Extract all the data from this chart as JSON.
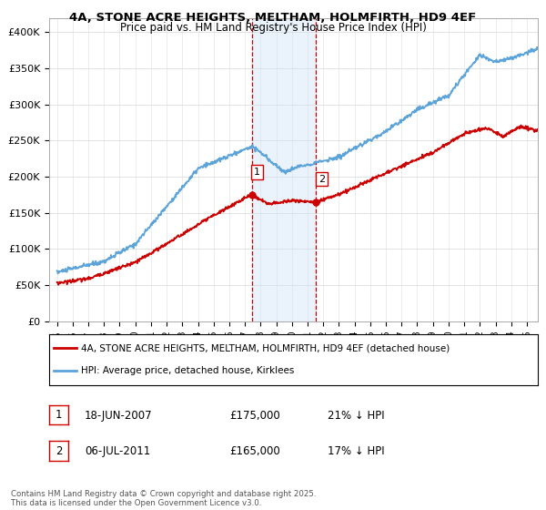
{
  "title": "4A, STONE ACRE HEIGHTS, MELTHAM, HOLMFIRTH, HD9 4EF",
  "subtitle": "Price paid vs. HM Land Registry's House Price Index (HPI)",
  "ylabel_ticks": [
    "£0",
    "£50K",
    "£100K",
    "£150K",
    "£200K",
    "£250K",
    "£300K",
    "£350K",
    "£400K"
  ],
  "ytick_values": [
    0,
    50000,
    100000,
    150000,
    200000,
    250000,
    300000,
    350000,
    400000
  ],
  "ylim": [
    0,
    420000
  ],
  "xlim_start": 1994.5,
  "xlim_end": 2025.7,
  "hpi_color": "#5ba3d9",
  "price_color": "#cc0000",
  "marker1_date": 2007.46,
  "marker2_date": 2011.51,
  "marker1_price": 175000,
  "marker2_price": 165000,
  "marker1_label": "1",
  "marker2_label": "2",
  "marker1_hpi_pct": "21% ↓ HPI",
  "marker2_hpi_pct": "17% ↓ HPI",
  "marker1_date_str": "18-JUN-2007",
  "marker2_date_str": "06-JUL-2011",
  "marker1_price_str": "£175,000",
  "marker2_price_str": "£165,000",
  "legend_label1": "4A, STONE ACRE HEIGHTS, MELTHAM, HOLMFIRTH, HD9 4EF (detached house)",
  "legend_label2": "HPI: Average price, detached house, Kirklees",
  "footer": "Contains HM Land Registry data © Crown copyright and database right 2025.\nThis data is licensed under the Open Government Licence v3.0.",
  "shade_color": "#cce0f5",
  "vline_color": "#cc0000",
  "background_color": "#ffffff",
  "grid_color": "#dddddd"
}
